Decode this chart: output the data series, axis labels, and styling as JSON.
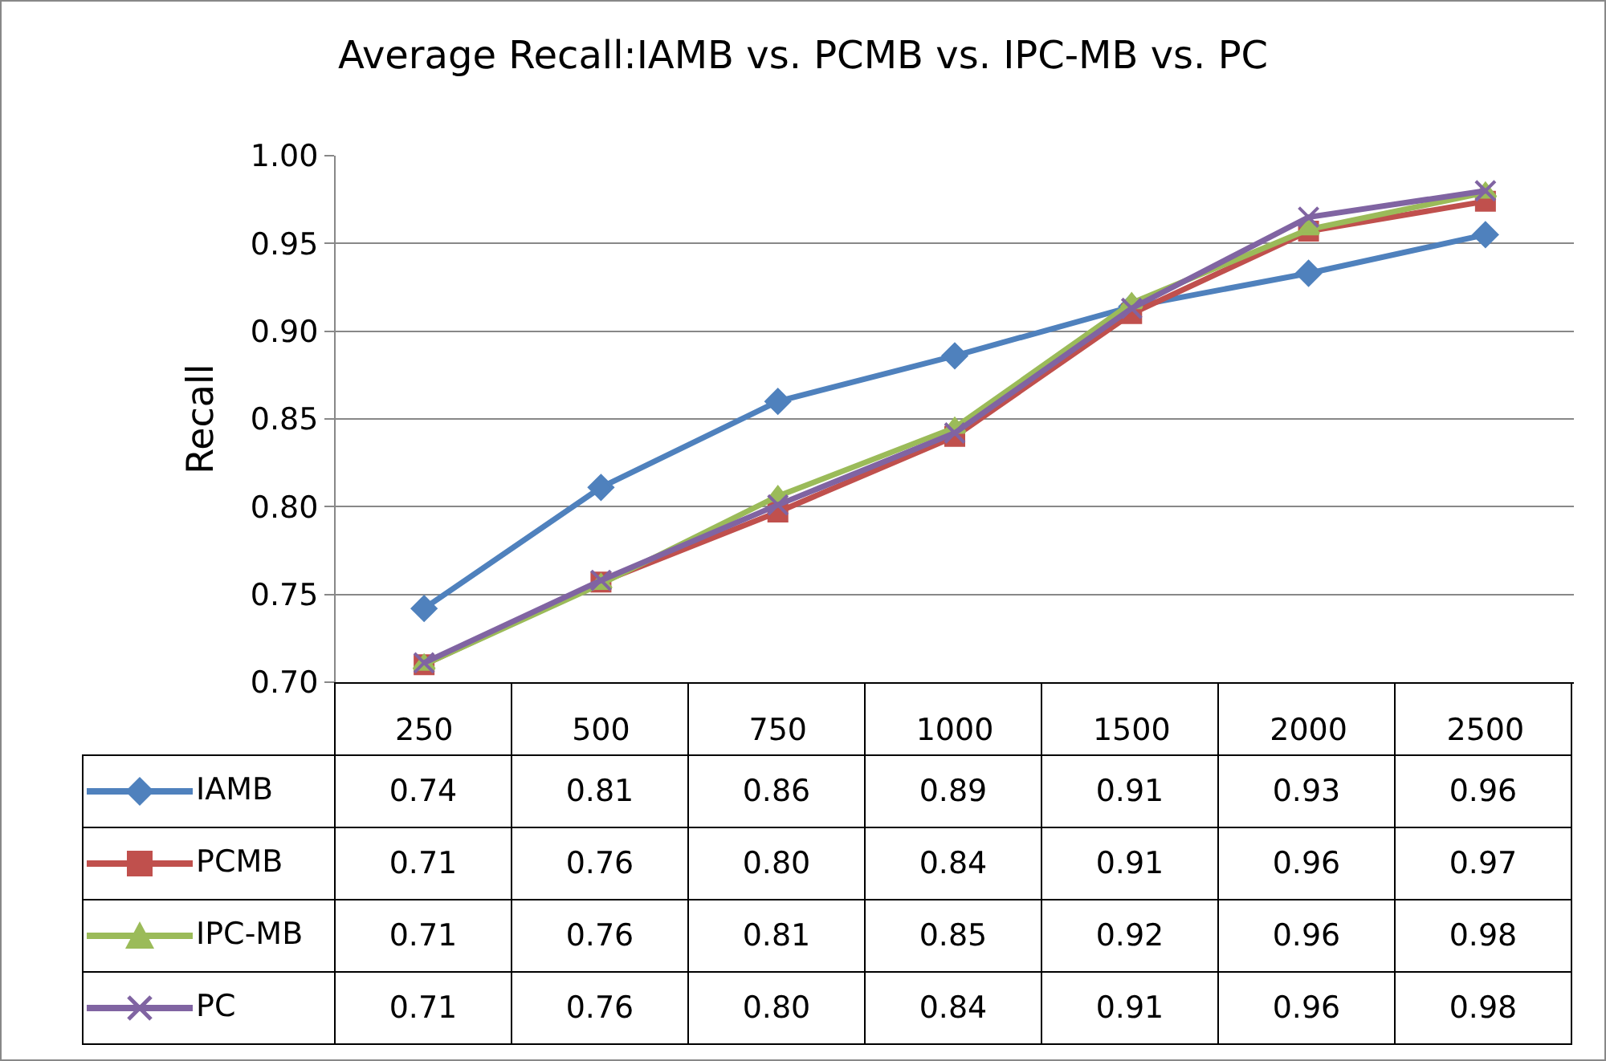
{
  "chart_data": {
    "type": "line",
    "title": "Average Recall:IAMB vs. PCMB vs. IPC-MB vs. PC",
    "ylabel": "Recall",
    "categories": [
      "250",
      "500",
      "750",
      "1000",
      "1500",
      "2000",
      "2500"
    ],
    "series": [
      {
        "name": "IAMB",
        "color": "#4f81bd",
        "marker": "diamond",
        "values": [
          0.742,
          0.811,
          0.86,
          0.886,
          0.914,
          0.933,
          0.955
        ],
        "value_labels": [
          "0.74",
          "0.81",
          "0.86",
          "0.89",
          "0.91",
          "0.93",
          "0.96"
        ]
      },
      {
        "name": "PCMB",
        "color": "#c0504d",
        "marker": "square",
        "values": [
          0.71,
          0.757,
          0.797,
          0.84,
          0.91,
          0.957,
          0.974
        ],
        "value_labels": [
          "0.71",
          "0.76",
          "0.80",
          "0.84",
          "0.91",
          "0.96",
          "0.97"
        ]
      },
      {
        "name": "IPC-MB",
        "color": "#9bbb59",
        "marker": "triangle",
        "values": [
          0.71,
          0.756,
          0.806,
          0.845,
          0.916,
          0.958,
          0.979
        ],
        "value_labels": [
          "0.71",
          "0.76",
          "0.81",
          "0.85",
          "0.92",
          "0.96",
          "0.98"
        ]
      },
      {
        "name": "PC",
        "color": "#8064a2",
        "marker": "cross",
        "values": [
          0.711,
          0.758,
          0.801,
          0.842,
          0.913,
          0.965,
          0.98
        ],
        "value_labels": [
          "0.71",
          "0.76",
          "0.80",
          "0.84",
          "0.91",
          "0.96",
          "0.98"
        ]
      }
    ],
    "ylim": [
      0.7,
      1.0
    ],
    "yticks": [
      {
        "value": 0.7,
        "label": "0.70"
      },
      {
        "value": 0.75,
        "label": "0.75"
      },
      {
        "value": 0.8,
        "label": "0.80"
      },
      {
        "value": 0.85,
        "label": "0.85"
      },
      {
        "value": 0.9,
        "label": "0.90"
      },
      {
        "value": 0.95,
        "label": "0.95"
      },
      {
        "value": 1.0,
        "label": "1.00"
      }
    ],
    "grid": "y",
    "legend": "bottom left",
    "line_style": "solid"
  }
}
